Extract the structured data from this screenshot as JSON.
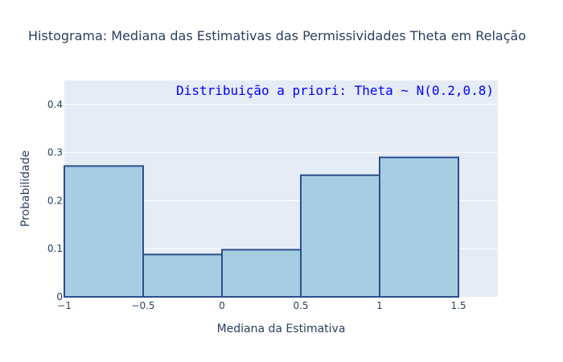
{
  "chart_data": {
    "type": "bar",
    "title": "Histograma: Mediana das Estimativas das Permissividades Theta em Relação",
    "xlabel": "Mediana da Estimativa",
    "ylabel": "Probabilidade",
    "annotation": "Distribuição a priori: Theta ~ N(0.2,0.8)",
    "bins": [
      {
        "start": -1.0,
        "end": -0.5,
        "value": 0.272
      },
      {
        "start": -0.5,
        "end": 0.0,
        "value": 0.088
      },
      {
        "start": 0.0,
        "end": 0.5,
        "value": 0.098
      },
      {
        "start": 0.5,
        "end": 1.0,
        "value": 0.253
      },
      {
        "start": 1.0,
        "end": 1.5,
        "value": 0.29
      }
    ],
    "xlim": [
      -1,
      1.75
    ],
    "ylim": [
      0,
      0.45
    ],
    "xticks": [
      -1,
      -0.5,
      0,
      0.5,
      1,
      1.5
    ],
    "xtick_labels": [
      "−1",
      "−0.5",
      "0",
      "0.5",
      "1",
      "1.5"
    ],
    "yticks": [
      0,
      0.1,
      0.2,
      0.3,
      0.4
    ],
    "ytick_labels": [
      "0",
      "0.1",
      "0.2",
      "0.3",
      "0.4"
    ],
    "grid": true,
    "colors": {
      "plot_bg": "#e5ecf6",
      "bar_fill": "#a6cee3",
      "bar_edge": "#2c4f8a",
      "grid": "#ffffff",
      "text": "#2a3f5f",
      "annotation": "#0000ff"
    }
  }
}
